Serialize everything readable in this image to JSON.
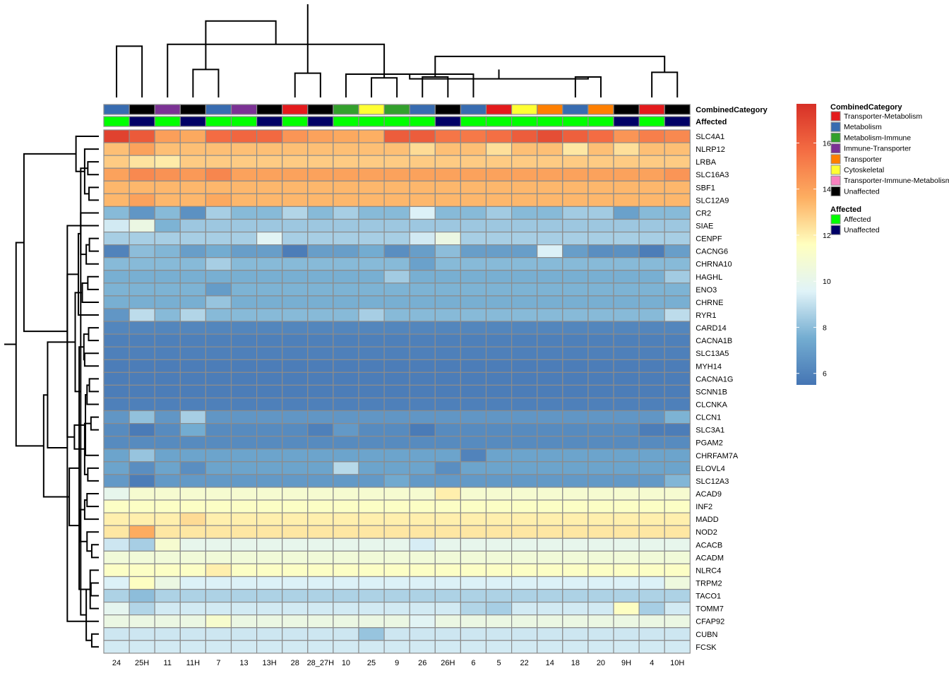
{
  "chart_data": {
    "type": "heatmap",
    "title": "",
    "columns": [
      "24",
      "25H",
      "11",
      "11H",
      "7",
      "13",
      "13H",
      "28",
      "28_27H",
      "10",
      "25",
      "9",
      "26",
      "26H",
      "6",
      "5",
      "22",
      "14",
      "18",
      "20",
      "9H",
      "4",
      "10H"
    ],
    "rows": [
      "SLC4A1",
      "NLRP12",
      "LRBA",
      "SLC16A3",
      "SBF1",
      "SLC12A9",
      "CR2",
      "SIAE",
      "CENPF",
      "CACNG6",
      "CHRNA10",
      "HAGHL",
      "ENO3",
      "CHRNE",
      "RYR1",
      "CARD14",
      "CACNA1B",
      "SLC13A5",
      "MYH14",
      "CACNA1G",
      "SCNN1B",
      "CLCNKA",
      "CLCN1",
      "SLC3A1",
      "PGAM2",
      "CHRFAM7A",
      "ELOVL4",
      "SLC12A3",
      "ACAD9",
      "INF2",
      "MADD",
      "NOD2",
      "ACACB",
      "ACADM",
      "NLRC4",
      "TRPM2",
      "TACO1",
      "TOMM7",
      "CFAP92",
      "CUBN",
      "FCSK"
    ],
    "row_base": [
      15.6,
      13.2,
      12.9,
      14.0,
      13.4,
      13.4,
      7.9,
      8.3,
      8.5,
      7.0,
      7.9,
      7.6,
      7.7,
      7.6,
      7.9,
      6.1,
      5.9,
      5.9,
      5.8,
      5.8,
      5.8,
      5.9,
      6.7,
      6.3,
      6.3,
      7.2,
      7.2,
      6.8,
      11.0,
      11.4,
      12.0,
      12.2,
      10.0,
      10.7,
      11.4,
      9.5,
      8.6,
      9.3,
      10.3,
      9.2,
      9.3
    ],
    "row_effects": {
      "SLC4A1": [
        1.5,
        0.7,
        -1.5,
        -1.8,
        0.1,
        0.3,
        0.2,
        -1.2,
        -1.6,
        -1.8,
        -2.0,
        0.6,
        0.6,
        -0.2,
        -0.3,
        0.0,
        0.6,
        1.1,
        0.5,
        0.1,
        -1.2,
        -0.5,
        -0.8
      ],
      "NLRP12": [
        0.0,
        0.8,
        0.0,
        0.0,
        0.0,
        0.0,
        0.0,
        0.0,
        0.0,
        0.0,
        0.0,
        0.0,
        -0.7,
        0.0,
        0.0,
        -0.8,
        0.0,
        0.0,
        -1.0,
        0.0,
        -0.8,
        0.0,
        0.0
      ],
      "LRBA": [
        0.0,
        -0.6,
        -0.8,
        0.0,
        0.0,
        0.0,
        0.0,
        0.0,
        0.0,
        0.0,
        0.0,
        0.0,
        0.0,
        0.0,
        0.0,
        0.0,
        0.0,
        0.0,
        0.0,
        0.0,
        0.0,
        0.0,
        0.0
      ],
      "SLC16A3": [
        0.0,
        0.8,
        0.5,
        0.3,
        0.9,
        0.0,
        0.0,
        0.0,
        0.0,
        0.0,
        0.0,
        0.0,
        0.0,
        0.0,
        0.0,
        0.0,
        0.0,
        0.0,
        0.0,
        0.0,
        0.0,
        0.0,
        0.4
      ],
      "SLC12A9": [
        0.0,
        0.6,
        0.0,
        0.0,
        0.4,
        0.0,
        0.0,
        0.0,
        0.0,
        0.0,
        0.0,
        0.0,
        0.0,
        0.0,
        0.0,
        0.0,
        0.0,
        0.0,
        0.0,
        0.0,
        0.0,
        0.0,
        0.0
      ],
      "CR2": [
        0.0,
        -1.2,
        0.0,
        -1.4,
        0.6,
        0.0,
        0.0,
        0.8,
        0.0,
        0.6,
        0.0,
        0.0,
        1.6,
        0.0,
        0.0,
        0.5,
        0.0,
        0.0,
        0.5,
        0.5,
        -0.8,
        0.0,
        0.0
      ],
      "SIAE": [
        1.0,
        2.0,
        -0.6,
        0.0,
        0.0,
        0.0,
        0.0,
        0.0,
        0.0,
        0.0,
        0.0,
        0.0,
        0.0,
        0.0,
        0.0,
        0.0,
        0.0,
        0.0,
        0.0,
        0.0,
        0.0,
        0.0,
        0.0
      ],
      "CENPF": [
        0.0,
        0.0,
        0.0,
        0.0,
        0.0,
        0.0,
        1.2,
        0.0,
        0.0,
        0.0,
        0.0,
        0.0,
        0.8,
        1.8,
        0.0,
        0.0,
        0.0,
        0.0,
        0.0,
        0.0,
        0.0,
        0.0,
        0.0
      ],
      "CACNG6": [
        -1.0,
        1.0,
        0.8,
        0.0,
        0.5,
        0.0,
        0.0,
        -1.2,
        0.0,
        0.0,
        0.5,
        -0.6,
        0.0,
        1.0,
        0.0,
        0.0,
        0.0,
        2.5,
        0.0,
        -0.6,
        -0.5,
        -1.2,
        0.0
      ],
      "CHRNA10": [
        0.0,
        0.0,
        0.0,
        0.0,
        0.6,
        0.0,
        0.0,
        0.0,
        0.0,
        0.0,
        0.0,
        0.0,
        -0.8,
        0.0,
        0.0,
        0.0,
        0.0,
        0.0,
        0.0,
        0.0,
        0.0,
        0.0,
        0.0
      ],
      "HAGHL": [
        0.0,
        0.0,
        0.0,
        0.0,
        0.0,
        0.0,
        0.0,
        0.0,
        0.0,
        0.0,
        0.0,
        0.8,
        0.0,
        0.0,
        0.0,
        0.0,
        0.0,
        0.0,
        0.0,
        0.0,
        0.0,
        0.0,
        0.8
      ],
      "ENO3": [
        0.0,
        0.0,
        0.0,
        0.0,
        -0.8,
        0.0,
        0.0,
        0.0,
        0.0,
        0.0,
        0.0,
        0.0,
        0.0,
        0.0,
        0.0,
        0.0,
        0.0,
        0.0,
        0.0,
        0.0,
        0.0,
        0.0,
        0.0
      ],
      "CHRNE": [
        0.0,
        0.0,
        0.0,
        0.0,
        0.6,
        0.0,
        0.0,
        0.0,
        0.0,
        0.0,
        0.0,
        0.0,
        0.0,
        0.0,
        0.0,
        0.0,
        0.0,
        0.0,
        0.0,
        0.0,
        0.0,
        0.0,
        0.0
      ],
      "RYR1": [
        -1.2,
        1.0,
        0.0,
        0.8,
        0.0,
        0.0,
        0.0,
        0.0,
        0.0,
        0.0,
        0.6,
        0.0,
        0.0,
        0.0,
        0.0,
        0.0,
        0.0,
        0.0,
        0.0,
        0.0,
        0.0,
        0.0,
        1.0
      ],
      "CLCN1": [
        0.0,
        1.4,
        0.0,
        1.8,
        0.0,
        0.0,
        0.0,
        0.0,
        0.0,
        0.0,
        0.0,
        0.0,
        0.0,
        0.0,
        0.0,
        0.0,
        0.0,
        0.0,
        0.0,
        0.0,
        0.0,
        0.0,
        1.0
      ],
      "SLC3A1": [
        0.0,
        -0.6,
        0.0,
        1.2,
        0.0,
        0.0,
        0.0,
        0.0,
        -0.4,
        0.5,
        0.0,
        0.0,
        -0.6,
        0.0,
        0.0,
        0.0,
        0.0,
        0.0,
        0.0,
        0.0,
        0.0,
        -0.5,
        -0.5
      ],
      "CHRFAM7A": [
        0.0,
        1.0,
        0.0,
        0.0,
        0.0,
        0.0,
        0.0,
        0.0,
        0.0,
        0.0,
        0.0,
        0.0,
        0.0,
        0.0,
        -1.2,
        0.0,
        0.0,
        0.0,
        0.0,
        0.0,
        0.0,
        0.0,
        0.0
      ],
      "ELOVL4": [
        0.0,
        -0.8,
        0.0,
        -0.8,
        0.0,
        0.0,
        0.0,
        0.0,
        0.0,
        1.6,
        0.0,
        0.0,
        0.0,
        -0.8,
        0.0,
        0.0,
        0.0,
        0.0,
        0.0,
        0.0,
        0.0,
        0.0,
        0.0
      ],
      "SLC12A3": [
        0.0,
        -1.0,
        0.0,
        0.0,
        0.0,
        0.0,
        0.0,
        0.0,
        0.0,
        0.0,
        0.0,
        0.6,
        0.0,
        0.0,
        0.0,
        0.0,
        0.0,
        0.0,
        0.0,
        0.0,
        0.0,
        0.0,
        1.0
      ],
      "ACAD9": [
        -1.0,
        0.0,
        0.0,
        0.0,
        0.0,
        0.0,
        0.0,
        0.0,
        0.0,
        0.0,
        0.0,
        0.0,
        0.0,
        1.0,
        0.0,
        0.0,
        0.0,
        0.0,
        0.0,
        0.0,
        0.0,
        0.0,
        0.0
      ],
      "MADD": [
        0.0,
        0.0,
        0.0,
        0.5,
        0.0,
        0.0,
        0.0,
        0.0,
        0.0,
        0.0,
        0.0,
        0.0,
        0.0,
        0.0,
        0.0,
        0.0,
        0.0,
        0.0,
        0.0,
        0.0,
        0.0,
        0.0,
        0.0
      ],
      "NOD2": [
        0.0,
        1.5,
        0.0,
        0.0,
        0.0,
        0.0,
        0.0,
        0.0,
        0.0,
        0.0,
        0.0,
        0.0,
        0.0,
        0.0,
        0.0,
        0.0,
        0.0,
        0.0,
        0.0,
        0.0,
        0.0,
        0.0,
        0.0
      ],
      "ACACB": [
        -0.8,
        -1.5,
        1.0,
        0.0,
        0.0,
        0.0,
        0.0,
        0.0,
        0.0,
        0.0,
        0.0,
        0.0,
        -0.6,
        0.0,
        0.0,
        0.0,
        0.0,
        0.0,
        0.0,
        0.0,
        0.0,
        0.0,
        0.0
      ],
      "NLRC4": [
        0.0,
        0.0,
        0.0,
        0.0,
        0.6,
        0.0,
        0.0,
        0.0,
        0.0,
        0.0,
        0.0,
        0.0,
        0.0,
        0.0,
        0.0,
        0.0,
        0.0,
        0.0,
        0.0,
        0.0,
        0.0,
        0.0,
        0.0
      ],
      "TRPM2": [
        0.0,
        2.0,
        0.8,
        0.0,
        0.0,
        0.0,
        0.0,
        0.0,
        0.0,
        0.0,
        0.0,
        0.0,
        0.0,
        0.0,
        0.0,
        0.0,
        0.0,
        0.0,
        0.0,
        0.0,
        0.0,
        0.0,
        1.0
      ],
      "TACO1": [
        0.0,
        -0.6,
        0.0,
        0.0,
        0.0,
        0.0,
        0.0,
        0.0,
        0.0,
        0.0,
        0.0,
        0.0,
        0.0,
        0.0,
        0.0,
        0.0,
        0.0,
        0.0,
        0.0,
        0.0,
        0.0,
        0.0,
        0.0
      ],
      "TOMM7": [
        0.6,
        -0.6,
        0.0,
        0.0,
        0.0,
        0.0,
        0.0,
        0.0,
        0.0,
        0.0,
        0.0,
        0.0,
        0.0,
        0.0,
        -0.6,
        -0.8,
        0.0,
        0.0,
        0.0,
        0.0,
        2.2,
        -0.8,
        0.0
      ],
      "CFAP92": [
        0.0,
        0.0,
        0.0,
        0.0,
        0.8,
        0.0,
        0.0,
        0.0,
        0.0,
        0.0,
        0.0,
        0.0,
        -0.6,
        0.0,
        0.0,
        0.0,
        0.0,
        0.0,
        0.0,
        0.0,
        0.0,
        0.0,
        0.0
      ],
      "CUBN": [
        0.0,
        0.0,
        0.0,
        0.0,
        0.0,
        0.0,
        0.0,
        0.0,
        0.0,
        0.0,
        -1.0,
        0.0,
        0.0,
        0.0,
        0.0,
        0.0,
        0.0,
        0.0,
        0.0,
        0.0,
        0.0,
        0.0,
        0.0
      ]
    },
    "annotations": {
      "CombinedCategory": [
        "Metabolism",
        "Unaffected",
        "Immune-Transporter",
        "Unaffected",
        "Metabolism",
        "Immune-Transporter",
        "Unaffected",
        "Transporter-Metabolism",
        "Unaffected",
        "Metabolism-Immune",
        "Cytoskeletal",
        "Metabolism-Immune",
        "Metabolism",
        "Unaffected",
        "Metabolism",
        "Transporter-Metabolism",
        "Cytoskeletal",
        "Transporter",
        "Metabolism",
        "Transporter",
        "Unaffected",
        "Transporter-Metabolism",
        "Unaffected"
      ],
      "Affected": [
        "Affected",
        "Unaffected",
        "Affected",
        "Unaffected",
        "Affected",
        "Affected",
        "Unaffected",
        "Affected",
        "Unaffected",
        "Affected",
        "Affected",
        "Affected",
        "Affected",
        "Unaffected",
        "Affected",
        "Affected",
        "Affected",
        "Affected",
        "Affected",
        "Affected",
        "Unaffected",
        "Affected",
        "Unaffected"
      ]
    },
    "annotation_titles": [
      "CombinedCategory",
      "Affected"
    ],
    "col_tree": [
      [
        8,
        9,
        26
      ],
      [
        22,
        23,
        27
      ],
      [
        4,
        5,
        30
      ],
      [
        11,
        12,
        21
      ],
      [
        13,
        14,
        22
      ],
      [
        19,
        20,
        22
      ],
      [
        10,
        15,
        25
      ],
      [
        -14,
        -15,
        28
      ],
      [
        -13,
        -14,
        30
      ],
      [
        -6,
        -7,
        20
      ],
      [
        -8,
        -9,
        28
      ],
      [
        -10,
        -11,
        30
      ],
      [
        -12,
        -13,
        42
      ],
      [
        -16,
        17,
        39
      ],
      [
        -17,
        -18,
        55
      ],
      [
        1,
        2,
        55
      ],
      [
        -2,
        -5,
        44
      ],
      [
        -20,
        -21,
        60
      ],
      [
        -4,
        3,
        57
      ],
      [
        -22,
        -23,
        66
      ],
      [
        -3,
        -19,
        82
      ],
      [
        -1,
        -20,
        100
      ]
    ],
    "row_tree": [
      [
        23,
        24,
        20
      ],
      [
        33,
        34,
        18
      ],
      [
        40,
        41,
        18
      ],
      [
        36,
        37,
        20
      ],
      [
        35,
        38,
        22
      ],
      [
        20,
        21,
        24
      ],
      [
        9,
        10,
        24
      ],
      [
        5,
        6,
        25
      ],
      [
        16,
        17,
        26
      ],
      [
        27,
        28,
        28
      ],
      [
        12,
        13,
        28
      ],
      [
        3,
        4,
        28
      ],
      [
        -6,
        22,
        30
      ],
      [
        32,
        -2,
        30
      ],
      [
        29,
        30,
        30
      ],
      [
        -3,
        -4,
        32
      ],
      [
        -7,
        11,
        32
      ],
      [
        -13,
        26,
        34
      ],
      [
        -1,
        -10,
        36
      ],
      [
        18,
        19,
        36
      ],
      [
        31,
        -15,
        36
      ],
      [
        2,
        -8,
        36
      ],
      [
        -9,
        -20,
        38
      ],
      [
        -11,
        14,
        42
      ],
      [
        -12,
        -16,
        46
      ],
      [
        7,
        -17,
        46
      ],
      [
        -21,
        -14,
        48
      ],
      [
        -5,
        -23,
        50
      ],
      [
        -26,
        15,
        52
      ],
      [
        1,
        -22,
        58
      ],
      [
        -24,
        -25,
        60
      ],
      [
        -18,
        -19,
        62
      ],
      [
        -28,
        -27,
        75
      ],
      [
        -29,
        39,
        80
      ],
      [
        -32,
        8,
        80
      ],
      [
        -34,
        -31,
        130
      ],
      [
        -33,
        -36,
        140
      ],
      [
        -30,
        -35,
        190
      ],
      [
        -37,
        -38,
        210
      ],
      [
        -39,
        -40,
        240
      ]
    ],
    "legend": {
      "title": "CombinedCategory",
      "items": [
        "Transporter-Metabolism",
        "Metabolism",
        "Metabolism-Immune",
        "Immune-Transporter",
        "Transporter",
        "Cytoskeletal",
        "Transporter-Immune-Metabolism",
        "Unaffected"
      ],
      "colors": [
        "#E31A1C",
        "#386CB0",
        "#33A02C",
        "#7B3294",
        "#FF7F00",
        "#FFFF33",
        "#F781BF",
        "#000000"
      ]
    },
    "legend2": {
      "title": "Affected",
      "items": [
        "Affected",
        "Unaffected"
      ],
      "colors": [
        "#00FF00",
        "#000066"
      ]
    },
    "colorbar": {
      "ticks": [
        "16",
        "14",
        "12",
        "10",
        "8",
        "6"
      ],
      "tick_values": [
        16,
        14,
        12,
        10,
        8,
        6
      ],
      "range": [
        5.5,
        17.7
      ]
    },
    "palette": [
      "#4575B4",
      "#74ADD1",
      "#E0F3F8",
      "#FFFFBF",
      "#FDAE61",
      "#F46D43",
      "#D73027"
    ]
  }
}
